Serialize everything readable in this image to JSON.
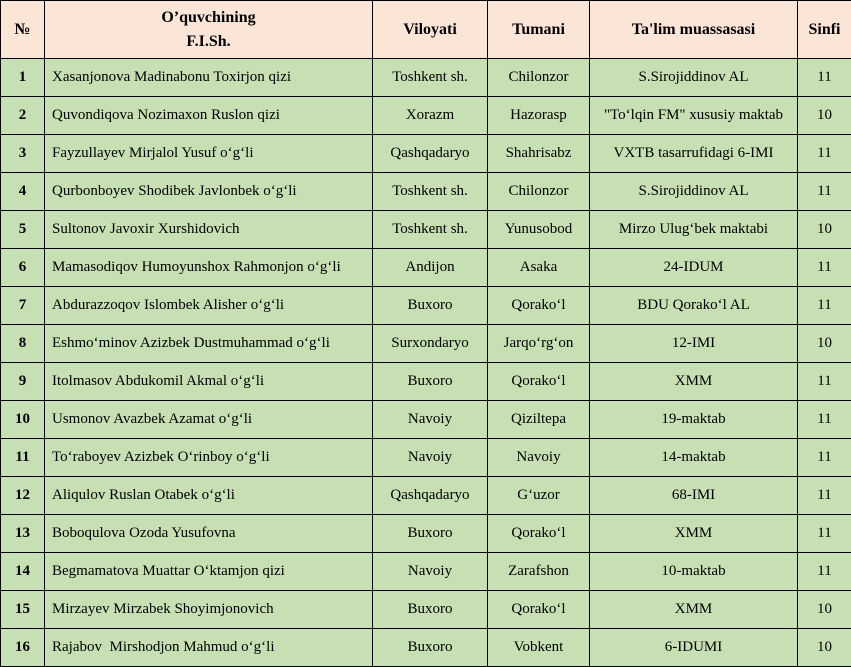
{
  "colors": {
    "header_bg": "#fbe5d6",
    "row_bg": "#c6e0b4",
    "border": "#000000",
    "text": "#000000"
  },
  "table": {
    "header": {
      "number": "№",
      "student_line1": "O’quvchining",
      "student_line2": "F.I.Sh.",
      "region": "Viloyati",
      "district": "Tumani",
      "institution": "Ta'lim muassasasi",
      "grade": "Sinfi"
    },
    "rows": [
      {
        "num": "1",
        "name": "Xasanjonova Madinabonu Toxirjon qizi",
        "region": "Toshkent sh.",
        "district": "Chilonzor",
        "institution": "S.Sirojiddinov AL",
        "grade": "11"
      },
      {
        "num": "2",
        "name": "Quvondiqova Nozimaxon Ruslon qizi",
        "region": "Xorazm",
        "district": "Hazorasp",
        "institution": "\"Toʻlqin FM\" xususiy maktab",
        "grade": "10"
      },
      {
        "num": "3",
        "name": "Fayzullayev Mirjalol Yusuf oʻgʻli",
        "region": "Qashqadaryo",
        "district": "Shahrisabz",
        "institution": "VXTB tasarrufidagi 6-IMI",
        "grade": "11"
      },
      {
        "num": "4",
        "name": "Qurbonboyev Shodibek Javlonbek oʻgʻli",
        "region": "Toshkent sh.",
        "district": "Chilonzor",
        "institution": "S.Sirojiddinov AL",
        "grade": "11"
      },
      {
        "num": "5",
        "name": "Sultonov Javoxir Xurshidovich",
        "region": "Toshkent sh.",
        "district": "Yunusobod",
        "institution": "Mirzo Ulugʻbek maktabi",
        "grade": "10"
      },
      {
        "num": "6",
        "name": "Mamasodiqov Humoyunshox Rahmonjon oʻgʻli",
        "region": "Andijon",
        "district": "Asaka",
        "institution": "24-IDUM",
        "grade": "11"
      },
      {
        "num": "7",
        "name": "Abdurazzoqov Islombek Alisher oʻgʻli",
        "region": "Buxoro",
        "district": "Qorakoʻl",
        "institution": "BDU Qorakoʻl AL",
        "grade": "11"
      },
      {
        "num": "8",
        "name": "Eshmoʻminov Azizbek Dustmuhammad oʻgʻli",
        "region": "Surxondaryo",
        "district": "Jarqoʻrgʻon",
        "institution": "12-IMI",
        "grade": "10"
      },
      {
        "num": "9",
        "name": "Itolmasov Abdukomil Akmal oʻgʻli",
        "region": "Buxoro",
        "district": "Qorakoʻl",
        "institution": "XMM",
        "grade": "11"
      },
      {
        "num": "10",
        "name": "Usmonov Avazbek Azamat oʻgʻli",
        "region": "Navoiy",
        "district": "Qiziltepa",
        "institution": "19-maktab",
        "grade": "11"
      },
      {
        "num": "11",
        "name": "Toʻraboyev Azizbek Oʻrinboy oʻgʻli",
        "region": "Navoiy",
        "district": "Navoiy",
        "institution": "14-maktab",
        "grade": "11"
      },
      {
        "num": "12",
        "name": "Aliqulov Ruslan Otabek oʻgʻli",
        "region": "Qashqadaryo",
        "district": "Gʻuzor",
        "institution": "68-IMI",
        "grade": "11"
      },
      {
        "num": "13",
        "name": "Boboqulova Ozoda Yusufovna",
        "region": "Buxoro",
        "district": "Qorakoʻl",
        "institution": "XMM",
        "grade": "11"
      },
      {
        "num": "14",
        "name": "Begmamatova Muattar Oʻktamjon qizi",
        "region": "Navoiy",
        "district": "Zarafshon",
        "institution": "10-maktab",
        "grade": "11"
      },
      {
        "num": "15",
        "name": "Mirzayev Mirzabek Shoyimjonovich",
        "region": "Buxoro",
        "district": "Qorakoʻl",
        "institution": "XMM",
        "grade": "10"
      },
      {
        "num": "16",
        "name": "Rajabov  Mirshodjon Mahmud oʻgʻli",
        "region": "Buxoro",
        "district": "Vobkent",
        "institution": "6-IDUMI",
        "grade": "10"
      }
    ]
  }
}
